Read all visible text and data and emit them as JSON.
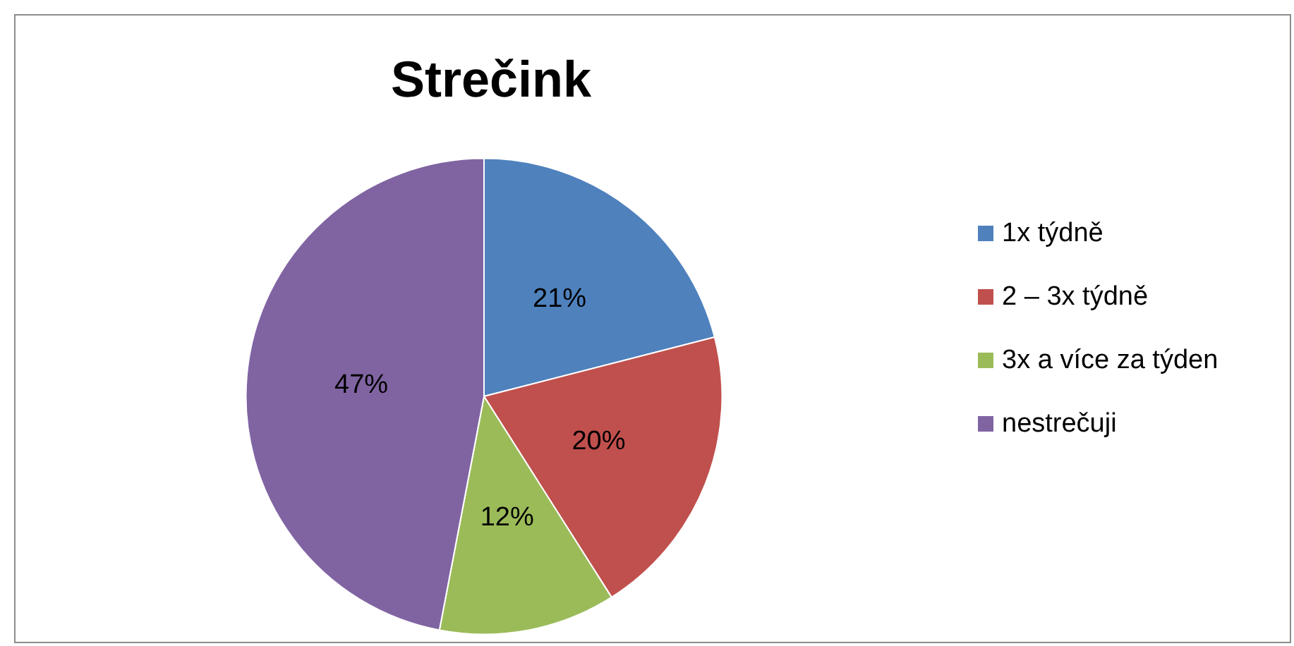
{
  "chart_data": {
    "type": "pie",
    "title": "Strečink",
    "categories": [
      "1x týdně",
      "2 – 3x týdně",
      "3x a více za týden",
      "nestrečuji"
    ],
    "values": [
      21,
      20,
      12,
      47
    ],
    "colors": [
      "#4f81bd",
      "#c0504d",
      "#9bbb59",
      "#8064a2"
    ],
    "value_labels": [
      "21%",
      "20%",
      "12%",
      "47%"
    ],
    "legend": "right"
  }
}
